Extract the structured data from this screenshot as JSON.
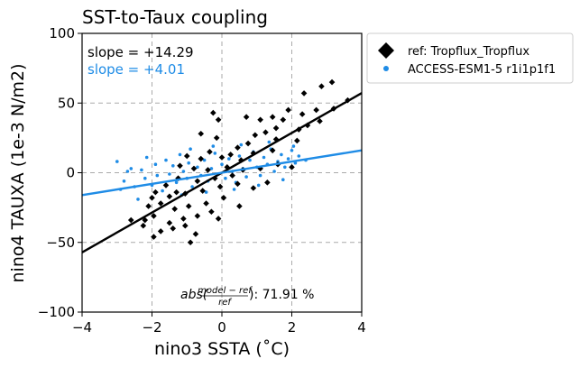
{
  "chart_data": {
    "type": "scatter",
    "title": "SST-to-Taux coupling",
    "xlabel": "nino3 SSTA (˚C)",
    "ylabel": "nino4 TAUXA (1e-3 N/m2)",
    "xlim": [
      -4,
      4
    ],
    "ylim": [
      -100,
      100
    ],
    "xticks": [
      -4,
      -2,
      0,
      2,
      4
    ],
    "yticks": [
      -100,
      -50,
      0,
      50,
      100
    ],
    "reference_lines": {
      "x": [
        -2,
        0,
        2
      ],
      "y": [
        -50,
        0,
        50
      ],
      "style": "dashed grey"
    },
    "legend": {
      "placement": "outside-top-right"
    },
    "annotations": [
      {
        "text": "slope = +14.29",
        "color": "#000000"
      },
      {
        "text": "slope = +4.01",
        "color": "#1f8ce6"
      }
    ],
    "metric": {
      "prefix": "abs(",
      "numerator": "model − ref",
      "denominator": "ref",
      "suffix": "): 71.91 %"
    },
    "series": [
      {
        "name": "ref: Tropflux_Tropflux",
        "marker": "diamond",
        "color": "#000000",
        "fit": {
          "slope": 14.29,
          "intercept": 0
        },
        "points": [
          [
            3.15,
            65
          ],
          [
            2.85,
            62
          ],
          [
            2.35,
            57
          ],
          [
            1.9,
            45
          ],
          [
            3.6,
            52
          ],
          [
            3.2,
            46
          ],
          [
            2.7,
            45
          ],
          [
            2.3,
            42
          ],
          [
            1.75,
            38
          ],
          [
            1.45,
            40
          ],
          [
            1.1,
            38
          ],
          [
            0.7,
            40
          ],
          [
            -0.25,
            43
          ],
          [
            -0.1,
            38
          ],
          [
            2.8,
            37
          ],
          [
            2.45,
            34
          ],
          [
            2.2,
            31
          ],
          [
            1.55,
            32
          ],
          [
            1.25,
            29
          ],
          [
            0.95,
            27
          ],
          [
            1.55,
            24
          ],
          [
            2.15,
            23
          ],
          [
            0.75,
            21
          ],
          [
            0.45,
            18
          ],
          [
            0.25,
            13
          ],
          [
            0.0,
            11
          ],
          [
            0.55,
            9
          ],
          [
            -0.35,
            15
          ],
          [
            -0.6,
            10
          ],
          [
            -1.0,
            12
          ],
          [
            -1.2,
            5
          ],
          [
            -0.8,
            3
          ],
          [
            -0.4,
            2
          ],
          [
            0.15,
            4
          ],
          [
            0.6,
            2
          ],
          [
            1.1,
            3
          ],
          [
            1.6,
            6
          ],
          [
            2.0,
            4
          ],
          [
            0.3,
            -2
          ],
          [
            -0.2,
            -4
          ],
          [
            -0.7,
            -6
          ],
          [
            -1.25,
            -4
          ],
          [
            -1.6,
            -9
          ],
          [
            -1.9,
            -14
          ],
          [
            -1.5,
            -17
          ],
          [
            -1.05,
            -15
          ],
          [
            -0.55,
            -13
          ],
          [
            -0.05,
            -10
          ],
          [
            0.45,
            -8
          ],
          [
            0.9,
            -11
          ],
          [
            1.3,
            -7
          ],
          [
            -2.1,
            -24
          ],
          [
            -1.75,
            -22
          ],
          [
            -1.35,
            -26
          ],
          [
            -0.95,
            -24
          ],
          [
            -0.45,
            -22
          ],
          [
            0.05,
            -18
          ],
          [
            -2.2,
            -34
          ],
          [
            -1.95,
            -31
          ],
          [
            -1.5,
            -36
          ],
          [
            -1.1,
            -33
          ],
          [
            -0.7,
            -31
          ],
          [
            -0.3,
            -28
          ],
          [
            -1.95,
            -46
          ],
          [
            -1.75,
            -42
          ],
          [
            -1.4,
            -40
          ],
          [
            -1.05,
            -38
          ],
          [
            -0.75,
            -44
          ],
          [
            -2.6,
            -34
          ],
          [
            -2.25,
            -38
          ],
          [
            -2.0,
            -18
          ],
          [
            -0.9,
            -50
          ],
          [
            -0.1,
            -33
          ],
          [
            0.5,
            -24
          ],
          [
            -1.3,
            -14
          ],
          [
            0.9,
            14
          ],
          [
            1.45,
            16
          ],
          [
            -0.15,
            25
          ],
          [
            -0.6,
            28
          ]
        ]
      },
      {
        "name": "ACCESS-ESM1-5 r1i1p1f1",
        "marker": "circle",
        "color": "#1f8ce6",
        "fit": {
          "slope": 4.01,
          "intercept": 0
        },
        "points": [
          [
            -3.0,
            8
          ],
          [
            -2.8,
            -6
          ],
          [
            -2.6,
            3
          ],
          [
            -2.5,
            -10
          ],
          [
            -2.4,
            -19
          ],
          [
            -2.3,
            2
          ],
          [
            -2.2,
            -4
          ],
          [
            -2.15,
            11
          ],
          [
            -2.0,
            -9
          ],
          [
            -1.9,
            6
          ],
          [
            -1.85,
            -2
          ],
          [
            -1.7,
            -13
          ],
          [
            -1.6,
            9
          ],
          [
            -1.5,
            -1
          ],
          [
            -1.4,
            5
          ],
          [
            -1.3,
            -7
          ],
          [
            -1.2,
            13
          ],
          [
            -1.1,
            1
          ],
          [
            -1.0,
            -4
          ],
          [
            -0.95,
            7
          ],
          [
            -0.85,
            -10
          ],
          [
            -0.7,
            4
          ],
          [
            -0.6,
            -2
          ],
          [
            -0.5,
            9
          ],
          [
            -0.4,
            -6
          ],
          [
            -0.3,
            3
          ],
          [
            -0.2,
            14
          ],
          [
            -0.1,
            -1
          ],
          [
            0.0,
            6
          ],
          [
            0.1,
            -4
          ],
          [
            0.2,
            10
          ],
          [
            0.3,
            1
          ],
          [
            0.4,
            -7
          ],
          [
            0.5,
            12
          ],
          [
            0.6,
            3
          ],
          [
            0.7,
            -3
          ],
          [
            0.8,
            9
          ],
          [
            0.9,
            15
          ],
          [
            1.0,
            4
          ],
          [
            1.1,
            -2
          ],
          [
            1.2,
            11
          ],
          [
            1.3,
            6
          ],
          [
            1.4,
            17
          ],
          [
            1.5,
            1
          ],
          [
            1.6,
            8
          ],
          [
            1.7,
            13
          ],
          [
            1.8,
            4
          ],
          [
            1.9,
            10
          ],
          [
            2.0,
            16
          ],
          [
            2.1,
            7
          ],
          [
            2.2,
            12
          ],
          [
            2.4,
            9
          ],
          [
            -2.9,
            -12
          ],
          [
            -2.7,
            1
          ],
          [
            -1.15,
            -16
          ],
          [
            -0.45,
            -14
          ],
          [
            0.35,
            -12
          ],
          [
            1.05,
            -9
          ],
          [
            1.75,
            -5
          ],
          [
            -0.9,
            17
          ],
          [
            -0.25,
            19
          ],
          [
            0.55,
            20
          ],
          [
            1.35,
            22
          ],
          [
            2.05,
            19
          ]
        ]
      }
    ]
  }
}
